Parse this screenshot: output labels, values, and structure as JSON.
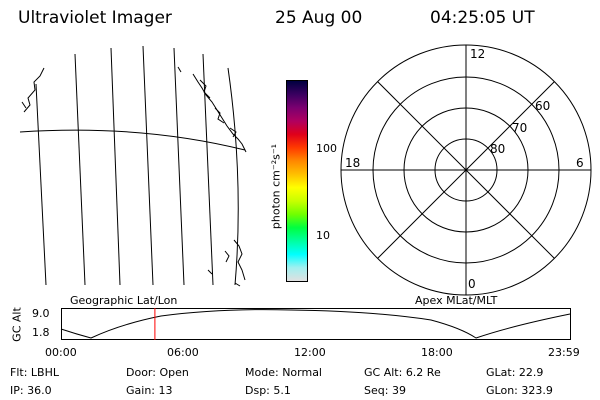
{
  "header": {
    "instrument": "Ultraviolet Imager",
    "date": "25 Aug 00",
    "time": "04:25:05 UT"
  },
  "geo_panel": {
    "label": "Geographic Lat/Lon"
  },
  "apex_panel": {
    "label": "Apex MLat/MLT"
  },
  "colorbar": {
    "unit_label": "photon cm⁻²s⁻¹",
    "ticks": [
      "100",
      "10"
    ],
    "colors": [
      "#000040",
      "#3a0060",
      "#7a0070",
      "#b00060",
      "#e0001a",
      "#ff3a00",
      "#ff8800",
      "#ffc000",
      "#ffff00",
      "#c8ff00",
      "#70ff00",
      "#00ff40",
      "#00ffa0",
      "#00ffff",
      "#a0f0f0",
      "#e0e0e0"
    ]
  },
  "polar": {
    "mlt_labels": {
      "top": "12",
      "left": "18",
      "right": "6",
      "bottom": "0"
    },
    "lat_labels": [
      "60",
      "70",
      "80"
    ]
  },
  "altitude_plot": {
    "ylabel": "GC Alt",
    "yticks": [
      "9.0",
      "1.8"
    ],
    "xticks": [
      "00:00",
      "06:00",
      "12:00",
      "18:00",
      "23:59"
    ],
    "current_time_marker_hours": 4.42
  },
  "footer": {
    "row1": [
      {
        "label": "Flt:",
        "value": "LBHL"
      },
      {
        "label": "Door:",
        "value": "Open"
      },
      {
        "label": "Mode:",
        "value": "Normal"
      },
      {
        "label": "GC Alt:",
        "value": "6.2 Re"
      },
      {
        "label": "GLat:",
        "value": "22.9"
      }
    ],
    "row2": [
      {
        "label": "IP:",
        "value": "36.0"
      },
      {
        "label": "Gain:",
        "value": "13"
      },
      {
        "label": "Dsp:",
        "value": "5.1"
      },
      {
        "label": "Seq:",
        "value": "39"
      },
      {
        "label": "GLon:",
        "value": "323.9"
      }
    ]
  }
}
